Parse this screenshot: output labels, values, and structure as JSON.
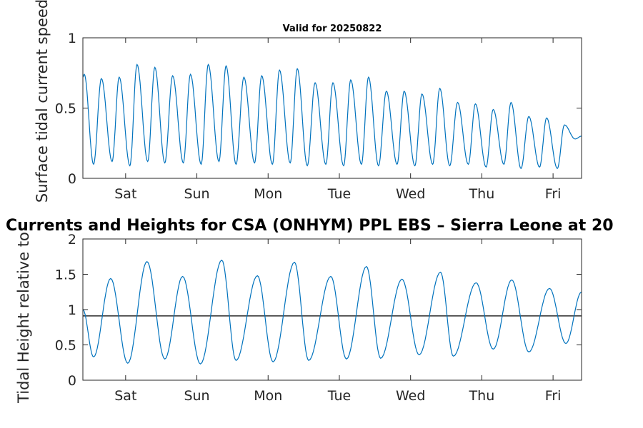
{
  "chart_data": [
    {
      "type": "line",
      "title": "Valid for 20250822",
      "ylabel": "Surface tidal current speed, kn",
      "xlabel": "",
      "ylim": [
        0,
        1
      ],
      "yticks": [
        0,
        0.5,
        1
      ],
      "ytick_labels": [
        "0",
        "0.5",
        "1"
      ],
      "x_range_days": [
        0.4,
        7.4
      ],
      "x_ticks": [
        {
          "label": "Sat",
          "day": 1
        },
        {
          "label": "Sun",
          "day": 2
        },
        {
          "label": "Mon",
          "day": 3
        },
        {
          "label": "Tue",
          "day": 4
        },
        {
          "label": "Wed",
          "day": 5
        },
        {
          "label": "Thu",
          "day": 6
        },
        {
          "label": "Fri",
          "day": 7
        }
      ],
      "grid": false,
      "color": "#0072BD",
      "series": [
        {
          "x": [
            0.4,
            0.42,
            0.55,
            0.66,
            0.81,
            0.91,
            1.06,
            1.16,
            1.31,
            1.41,
            1.55,
            1.66,
            1.81,
            1.91,
            2.06,
            2.16,
            2.31,
            2.41,
            2.55,
            2.66,
            2.81,
            2.91,
            3.06,
            3.16,
            3.31,
            3.41,
            3.55,
            3.66,
            3.81,
            3.91,
            4.06,
            4.16,
            4.31,
            4.41,
            4.55,
            4.66,
            4.81,
            4.91,
            5.06,
            5.16,
            5.31,
            5.41,
            5.55,
            5.66,
            5.81,
            5.91,
            6.06,
            6.16,
            6.31,
            6.41,
            6.55,
            6.66,
            6.81,
            6.91,
            7.06,
            7.16,
            7.31,
            7.4
          ],
          "values": [
            0.72,
            0.74,
            0.1,
            0.71,
            0.12,
            0.72,
            0.09,
            0.81,
            0.12,
            0.79,
            0.11,
            0.73,
            0.11,
            0.74,
            0.1,
            0.81,
            0.12,
            0.8,
            0.1,
            0.72,
            0.11,
            0.73,
            0.1,
            0.77,
            0.11,
            0.78,
            0.09,
            0.68,
            0.1,
            0.68,
            0.09,
            0.7,
            0.1,
            0.72,
            0.09,
            0.62,
            0.1,
            0.62,
            0.09,
            0.6,
            0.1,
            0.64,
            0.09,
            0.54,
            0.1,
            0.53,
            0.08,
            0.49,
            0.1,
            0.54,
            0.07,
            0.44,
            0.08,
            0.43,
            0.07,
            0.38,
            0.28,
            0.3
          ]
        }
      ]
    },
    {
      "type": "line",
      "title": "Currents and Heights for CSA (ONHYM) PPL EBS  – Sierra Leone at 20",
      "ylabel": "Tidal Height relative to",
      "xlabel": "",
      "ylim": [
        0,
        2
      ],
      "yticks": [
        0,
        0.5,
        1,
        1.5,
        2
      ],
      "ytick_labels": [
        "0",
        "0.5",
        "1",
        "1.5",
        "2"
      ],
      "x_range_days": [
        0.4,
        7.4
      ],
      "x_ticks": [
        {
          "label": "Sat",
          "day": 1
        },
        {
          "label": "Sun",
          "day": 2
        },
        {
          "label": "Mon",
          "day": 3
        },
        {
          "label": "Tue",
          "day": 4
        },
        {
          "label": "Wed",
          "day": 5
        },
        {
          "label": "Thu",
          "day": 6
        },
        {
          "label": "Fri",
          "day": 7
        }
      ],
      "grid": false,
      "color": "#0072BD",
      "reference_line": {
        "y": 0.91,
        "color": "#000000"
      },
      "series": [
        {
          "x": [
            0.4,
            0.55,
            0.79,
            1.03,
            1.3,
            1.55,
            1.8,
            2.05,
            2.35,
            2.55,
            2.85,
            3.07,
            3.37,
            3.57,
            3.88,
            4.1,
            4.38,
            4.58,
            4.88,
            5.12,
            5.42,
            5.6,
            5.92,
            6.16,
            6.42,
            6.66,
            6.95,
            7.18,
            7.4
          ],
          "values": [
            1.0,
            0.33,
            1.44,
            0.24,
            1.68,
            0.3,
            1.47,
            0.23,
            1.7,
            0.28,
            1.48,
            0.26,
            1.67,
            0.28,
            1.47,
            0.3,
            1.61,
            0.31,
            1.43,
            0.36,
            1.53,
            0.34,
            1.38,
            0.44,
            1.42,
            0.4,
            1.3,
            0.52,
            1.25
          ]
        }
      ]
    }
  ]
}
